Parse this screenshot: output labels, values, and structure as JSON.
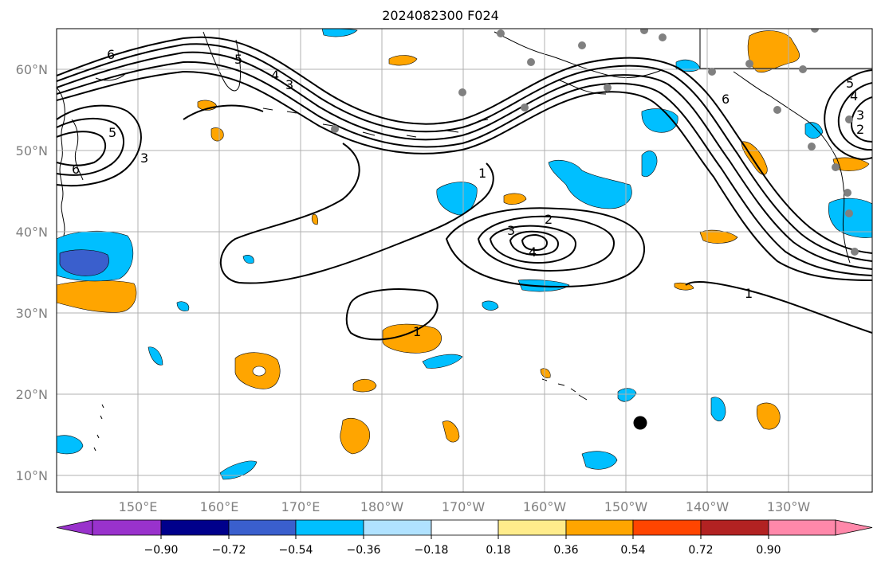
{
  "title": "2024082300 F024",
  "lat_labels": [
    "60°N",
    "50°N",
    "40°N",
    "30°N",
    "20°N",
    "10°N"
  ],
  "lon_labels": [
    "150°E",
    "160°E",
    "170°E",
    "180°W",
    "170°W",
    "160°W",
    "150°W",
    "140°W",
    "130°W"
  ],
  "colorbar": {
    "colors": [
      "#9932cc",
      "#00008b",
      "#3a5fcd",
      "#00bfff",
      "#b0e2ff",
      "#ffffff",
      "#ffec8b",
      "#ffa500",
      "#ff4500",
      "#b22222",
      "#ff88aa"
    ],
    "labels": [
      "−0.90",
      "−0.72",
      "−0.54",
      "−0.36",
      "−0.18",
      "0.18",
      "0.36",
      "0.54",
      "0.72",
      "0.90"
    ]
  },
  "contour_labels": [
    "6",
    "5",
    "4",
    "3",
    "6",
    "5",
    "3",
    "1",
    "2",
    "3",
    "4",
    "1",
    "1",
    "6",
    "5",
    "4",
    "3",
    "2"
  ],
  "colors": {
    "positive": "#ffa500",
    "negative": "#00bfff",
    "strong_negative": "#3a5fcd",
    "station": "#808080",
    "storm": "#000000"
  }
}
